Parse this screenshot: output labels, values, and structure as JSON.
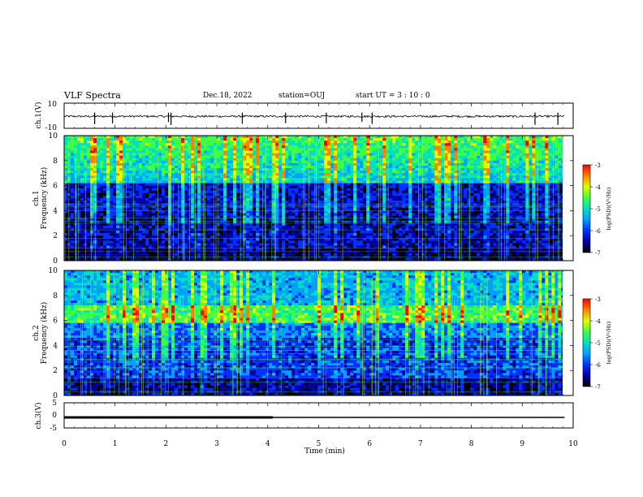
{
  "header": {
    "title": "VLF Spectra",
    "date": "Dec.18, 2022",
    "station": "station=OUJ",
    "start": "start  UT =   3 : 10 : 0"
  },
  "chart_data": [
    {
      "type": "line",
      "panel": "ch1-waveform",
      "ylabel": "ch.1(V)",
      "ylim": [
        -10,
        10
      ],
      "yticks": [
        "10",
        "-10"
      ],
      "xlim": [
        0,
        10
      ],
      "x_data_range": [
        0,
        9.83
      ],
      "baseline": -0.5,
      "spike_times": [
        0.6,
        0.95,
        2.05,
        2.1,
        3.5,
        4.35,
        5.15,
        5.85,
        6.05,
        9.25,
        9.7
      ]
    },
    {
      "type": "heatmap",
      "panel": "ch1-spectrogram",
      "ylabel": "ch.1\nFrequency (kHz)",
      "ylim": [
        0,
        10
      ],
      "yticks": [
        "0",
        "2",
        "4",
        "6",
        "8",
        "10"
      ],
      "xlim": [
        0,
        10
      ],
      "colorbar": {
        "label": "log(PSD)(V²/Hz)",
        "range": [
          -7,
          -3
        ],
        "ticks": [
          "-3",
          "-4",
          "-5",
          "-6",
          "-7"
        ]
      }
    },
    {
      "type": "heatmap",
      "panel": "ch2-spectrogram",
      "ylabel": "ch.2\nFrequency (kHz)",
      "ylim": [
        0,
        10
      ],
      "yticks": [
        "0",
        "2",
        "4",
        "6",
        "8",
        "10"
      ],
      "xlim": [
        0,
        10
      ],
      "colorbar": {
        "label": "log(PSD)(V²/Hz)",
        "range": [
          -7,
          -3
        ],
        "ticks": [
          "-3",
          "-4",
          "-5",
          "-6",
          "-7"
        ]
      }
    },
    {
      "type": "line",
      "panel": "ch3-waveform",
      "ylabel": "ch.3(V)",
      "ylim": [
        -5,
        5
      ],
      "yticks": [
        "5",
        "0",
        "-5"
      ],
      "xlim": [
        0,
        10
      ],
      "x_data_range": [
        0,
        9.83
      ],
      "baseline": -0.8,
      "thick_until": 4.1
    }
  ],
  "xaxis": {
    "label": "Time (min)",
    "ticks": [
      "0",
      "1",
      "2",
      "3",
      "4",
      "5",
      "6",
      "7",
      "8",
      "9",
      "10"
    ]
  },
  "colors": {
    "colormap": [
      "#000000",
      "#0000a0",
      "#0030ff",
      "#00a0ff",
      "#00e0c0",
      "#40ff40",
      "#e0ff00",
      "#ff8000",
      "#ff0000",
      "#ffffff"
    ]
  }
}
